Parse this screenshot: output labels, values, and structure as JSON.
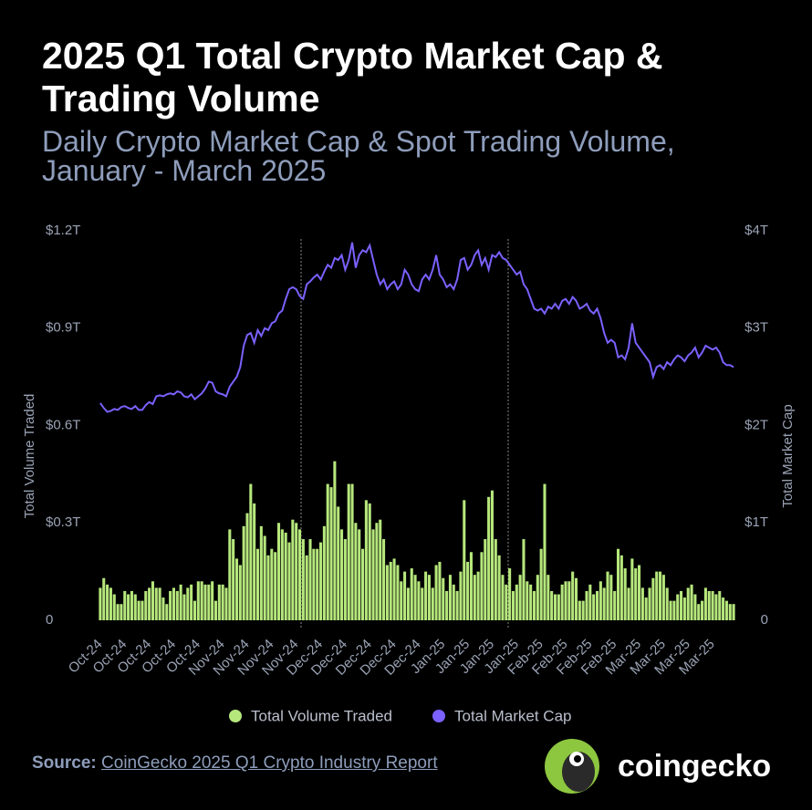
{
  "chart_data": {
    "type": "combo",
    "title": "2025 Q1 Total Crypto Market Cap & Trading Volume",
    "subtitle": "Daily Crypto Market Cap & Spot Trading Volume, January - March 2025",
    "y_label": "Total Volume Traded",
    "y2_label": "Total Market Cap",
    "categories": [
      "Oct-24",
      null,
      null,
      null,
      null,
      null,
      null,
      "Oct-24",
      null,
      null,
      null,
      null,
      null,
      null,
      "Oct-24",
      null,
      null,
      null,
      null,
      null,
      null,
      "Oct-24",
      null,
      null,
      null,
      null,
      null,
      null,
      "Oct-24",
      null,
      null,
      null,
      null,
      null,
      null,
      "Nov-24",
      null,
      null,
      null,
      null,
      null,
      null,
      "Nov-24",
      null,
      null,
      null,
      null,
      null,
      null,
      "Nov-24",
      null,
      null,
      null,
      null,
      null,
      null,
      "Nov-24",
      null,
      null,
      null,
      null,
      null,
      null,
      "Dec-24",
      null,
      null,
      null,
      null,
      null,
      null,
      "Dec-24",
      null,
      null,
      null,
      null,
      null,
      null,
      "Dec-24",
      null,
      null,
      null,
      null,
      null,
      null,
      "Dec-24",
      null,
      null,
      null,
      null,
      null,
      null,
      "Dec-24",
      null,
      null,
      null,
      null,
      null,
      null,
      "Jan-25",
      null,
      null,
      null,
      null,
      null,
      null,
      "Jan-25",
      null,
      null,
      null,
      null,
      null,
      null,
      "Jan-25",
      null,
      null,
      null,
      null,
      null,
      null,
      "Jan-25",
      null,
      null,
      null,
      null,
      null,
      null,
      "Feb-25",
      null,
      null,
      null,
      null,
      null,
      null,
      "Feb-25",
      null,
      null,
      null,
      null,
      null,
      null,
      "Feb-25",
      null,
      null,
      null,
      null,
      null,
      null,
      "Feb-25",
      null,
      null,
      null,
      null,
      null,
      null,
      "Mar-25",
      null,
      null,
      null,
      null,
      null,
      null,
      "Mar-25",
      null,
      null,
      null,
      null,
      null,
      null,
      "Mar-25",
      null,
      null,
      null,
      null,
      null,
      null,
      "Mar-25",
      null,
      null,
      null,
      null,
      null,
      null
    ],
    "series": [
      {
        "name": "Total Volume Traded",
        "type": "bar",
        "color": "#b6e77c",
        "values": [
          0.1,
          0.13,
          0.11,
          0.1,
          0.08,
          0.05,
          0.05,
          0.09,
          0.08,
          0.09,
          0.08,
          0.06,
          0.06,
          0.09,
          0.1,
          0.12,
          0.1,
          0.1,
          0.07,
          0.05,
          0.09,
          0.1,
          0.09,
          0.11,
          0.08,
          0.1,
          0.11,
          0.06,
          0.12,
          0.12,
          0.11,
          0.11,
          0.12,
          0.06,
          0.11,
          0.11,
          0.1,
          0.28,
          0.25,
          0.19,
          0.17,
          0.29,
          0.33,
          0.42,
          0.36,
          0.22,
          0.29,
          0.26,
          0.2,
          0.22,
          0.21,
          0.3,
          0.28,
          0.27,
          0.24,
          0.31,
          0.3,
          0.28,
          0.25,
          0.2,
          0.25,
          0.22,
          0.22,
          0.24,
          0.29,
          0.42,
          0.41,
          0.49,
          0.35,
          0.28,
          0.25,
          0.42,
          0.42,
          0.3,
          0.28,
          0.22,
          0.37,
          0.36,
          0.28,
          0.3,
          0.31,
          0.25,
          0.17,
          0.18,
          0.19,
          0.17,
          0.12,
          0.15,
          0.1,
          0.16,
          0.14,
          0.12,
          0.1,
          0.15,
          0.14,
          0.1,
          0.17,
          0.18,
          0.13,
          0.09,
          0.14,
          0.11,
          0.09,
          0.15,
          0.37,
          0.18,
          0.21,
          0.14,
          0.15,
          0.21,
          0.25,
          0.38,
          0.4,
          0.25,
          0.2,
          0.14,
          0.11,
          0.16,
          0.09,
          0.11,
          0.14,
          0.25,
          0.12,
          0.11,
          0.09,
          0.14,
          0.22,
          0.42,
          0.14,
          0.09,
          0.08,
          0.08,
          0.11,
          0.12,
          0.12,
          0.15,
          0.13,
          0.06,
          0.06,
          0.09,
          0.11,
          0.08,
          0.09,
          0.12,
          0.1,
          0.15,
          0.14,
          0.09,
          0.22,
          0.2,
          0.16,
          0.1,
          0.19,
          0.16,
          0.17,
          0.1,
          0.07,
          0.1,
          0.13,
          0.15,
          0.15,
          0.14,
          0.1,
          0.06,
          0.06,
          0.08,
          0.09,
          0.07,
          0.1,
          0.11,
          0.08,
          0.05,
          0.06,
          0.1,
          0.09,
          0.09,
          0.08,
          0.09,
          0.07,
          0.06,
          0.05,
          0.05
        ]
      },
      {
        "name": "Total Market Cap",
        "type": "line",
        "axis": "y2",
        "color": "#7b61ff",
        "values": [
          2.23,
          2.18,
          2.14,
          2.15,
          2.17,
          2.16,
          2.19,
          2.2,
          2.18,
          2.17,
          2.2,
          2.16,
          2.16,
          2.21,
          2.24,
          2.22,
          2.3,
          2.31,
          2.3,
          2.32,
          2.33,
          2.32,
          2.35,
          2.34,
          2.3,
          2.29,
          2.32,
          2.27,
          2.3,
          2.33,
          2.38,
          2.45,
          2.44,
          2.35,
          2.33,
          2.32,
          2.3,
          2.4,
          2.45,
          2.5,
          2.6,
          2.82,
          2.93,
          2.95,
          2.85,
          2.98,
          2.92,
          3.0,
          2.98,
          3.05,
          3.07,
          3.15,
          3.18,
          3.3,
          3.4,
          3.42,
          3.4,
          3.33,
          3.3,
          3.45,
          3.48,
          3.52,
          3.55,
          3.5,
          3.58,
          3.65,
          3.62,
          3.72,
          3.7,
          3.75,
          3.6,
          3.7,
          3.88,
          3.62,
          3.75,
          3.8,
          3.78,
          3.85,
          3.7,
          3.55,
          3.45,
          3.5,
          3.4,
          3.45,
          3.48,
          3.4,
          3.45,
          3.6,
          3.55,
          3.45,
          3.4,
          3.38,
          3.5,
          3.55,
          3.5,
          3.6,
          3.75,
          3.55,
          3.5,
          3.42,
          3.45,
          3.4,
          3.5,
          3.7,
          3.72,
          3.6,
          3.65,
          3.75,
          3.8,
          3.65,
          3.72,
          3.6,
          3.75,
          3.73,
          3.78,
          3.72,
          3.7,
          3.65,
          3.6,
          3.55,
          3.58,
          3.45,
          3.4,
          3.3,
          3.2,
          3.18,
          3.2,
          3.15,
          3.22,
          3.2,
          3.25,
          3.2,
          3.28,
          3.3,
          3.25,
          3.32,
          3.28,
          3.2,
          3.22,
          3.25,
          3.18,
          3.15,
          3.2,
          3.1,
          2.95,
          2.85,
          2.88,
          2.85,
          2.7,
          2.72,
          2.68,
          2.8,
          3.05,
          2.85,
          2.8,
          2.75,
          2.7,
          2.65,
          2.5,
          2.6,
          2.62,
          2.58,
          2.65,
          2.62,
          2.68,
          2.72,
          2.7,
          2.66,
          2.72,
          2.75,
          2.8,
          2.7,
          2.75,
          2.82,
          2.8,
          2.78,
          2.8,
          2.75,
          2.65,
          2.62,
          2.62,
          2.6
        ]
      }
    ],
    "ylim": [
      0,
      1.2
    ],
    "yticks": [
      0,
      {
        "value": 0.3,
        "label": "$0.3T"
      },
      {
        "value": 0.6,
        "label": "$0.6T"
      },
      {
        "value": 0.9,
        "label": "$0.9T"
      },
      {
        "value": 1.2,
        "label": "$1.2T"
      }
    ],
    "y2lim": [
      0,
      4
    ],
    "y2ticks": [
      0,
      {
        "value": 1,
        "label": "$1T"
      },
      {
        "value": 2,
        "label": "$2T"
      },
      {
        "value": 3,
        "label": "$3T"
      },
      {
        "value": 4,
        "label": "$4T"
      }
    ],
    "legend": "bottom",
    "source_label": "Source:",
    "source": "CoinGecko 2025 Q1 Crypto Industry Report",
    "logo": "coingecko"
  }
}
